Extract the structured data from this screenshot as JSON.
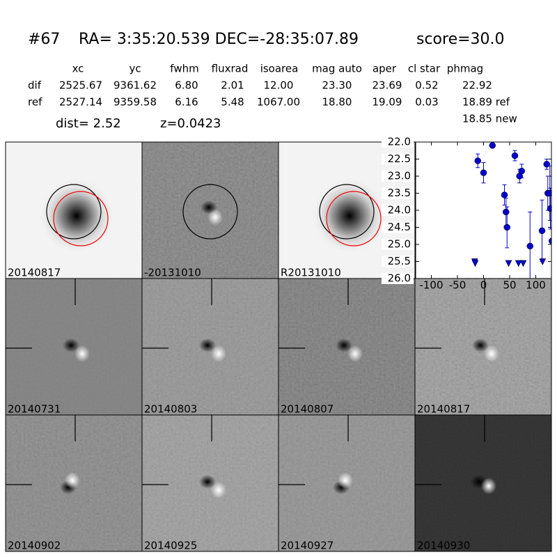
{
  "header": {
    "id": "#67",
    "coords": "RA= 3:35:20.539 DEC=-28:35:07.89",
    "score": "score=30.0"
  },
  "table": {
    "columns": [
      "xc",
      "yc",
      "fwhm",
      "fluxrad",
      "isoarea",
      "mag auto",
      "aper",
      "cl star",
      "phmag"
    ],
    "rows": [
      [
        "dif",
        "2525.67",
        "9361.62",
        "6.80",
        "2.01",
        "12.00",
        "23.30",
        "23.69",
        "0.52",
        "22.92"
      ],
      [
        "ref",
        "2527.14",
        "9359.58",
        "6.16",
        "5.48",
        "1067.00",
        "18.80",
        "19.09",
        "0.03",
        "18.89 ref"
      ]
    ],
    "extra": "18.85 new"
  },
  "dist": "dist=  2.52",
  "redshift": "z=0.0423",
  "panels": [
    {
      "label": "20140817"
    },
    {
      "label": "-20131010"
    },
    {
      "label": "R20131010"
    },
    {
      "label": "20140731"
    },
    {
      "label": "20140803"
    },
    {
      "label": "20140807"
    },
    {
      "label": "20140817",
      "label_color": "#ff0000"
    },
    {
      "label": "20140902"
    },
    {
      "label": "20140925"
    },
    {
      "label": "20140927"
    },
    {
      "label": "20140930"
    }
  ],
  "chart_data": {
    "type": "scatter",
    "x": [
      -11,
      0,
      17,
      40,
      43,
      45,
      60,
      69,
      73,
      89,
      112,
      121,
      123,
      127,
      128,
      131
    ],
    "values": [
      22.55,
      22.9,
      22.1,
      23.55,
      24.05,
      24.5,
      22.4,
      23.0,
      22.85,
      25.05,
      24.6,
      22.65,
      23.5,
      23.5,
      23.95,
      24.9
    ],
    "errors": [
      0.2,
      0.3,
      0.05,
      0.3,
      0.4,
      0.6,
      0.15,
      0.2,
      0.2,
      1.0,
      0.9,
      0.15,
      0.5,
      0.8,
      0.6,
      0.6
    ],
    "limits": {
      "x": [
        -17,
        -16,
        48,
        67,
        76,
        113
      ],
      "values": [
        25.5,
        25.55,
        25.55,
        25.55,
        25.55,
        25.5
      ]
    },
    "color": "#0000cc",
    "xlim": [
      -130,
      130
    ],
    "ylim": [
      22.0,
      26.0
    ],
    "y_inverted": true,
    "xticks": [
      -100,
      -50,
      0,
      50,
      100
    ],
    "yticks": [
      {
        "value": 22.0,
        "label": "22.0"
      },
      {
        "value": 22.5,
        "label": "22.5"
      },
      {
        "value": 23.0,
        "label": "23.0"
      },
      {
        "value": 23.5,
        "label": "23.5"
      },
      {
        "value": 24.0,
        "label": "24.0"
      },
      {
        "value": 24.5,
        "label": "24.5"
      },
      {
        "value": 25.0,
        "label": "25.0"
      },
      {
        "value": 25.5,
        "label": "25.5"
      },
      {
        "value": 26.0,
        "label": "26.0"
      }
    ]
  }
}
